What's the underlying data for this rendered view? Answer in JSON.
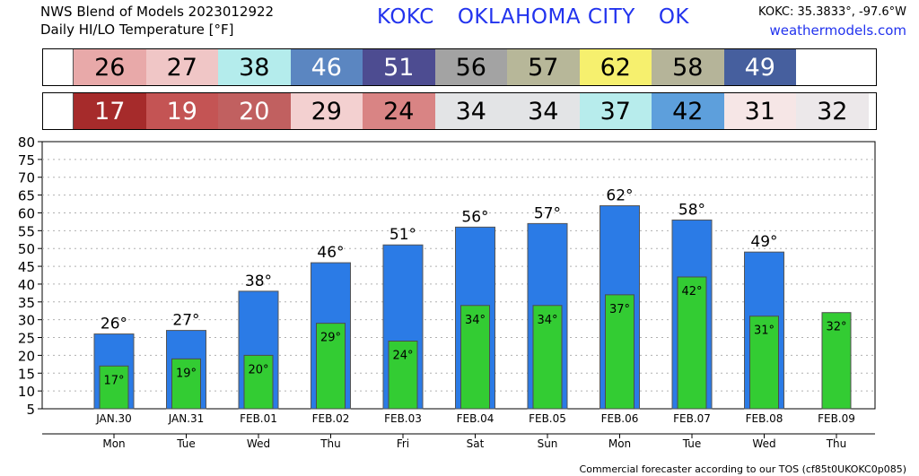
{
  "header": {
    "line1": "NWS Blend of Models 2023012922",
    "line2": "Daily HI/LO Temperature [°F]",
    "station_id": "KOKC",
    "station_name": "OKLAHOMA CITY",
    "state": "OK",
    "coords": "KOKC: 35.3833°, -97.6°W",
    "site": "weathermodels.com"
  },
  "footer": "Commercial forecaster according to our TOS (cf85t0UKOKC0p085)",
  "strips": {
    "hi": [
      "26",
      "27",
      "38",
      "46",
      "51",
      "56",
      "57",
      "62",
      "58",
      "49",
      ""
    ],
    "hi_colors": [
      "#e8a9a9",
      "#f0c6c6",
      "#b4ecec",
      "#5b86c1",
      "#4d4c91",
      "#a3a3a3",
      "#b7b799",
      "#f6f06e",
      "#b5b499",
      "#465f9e",
      "#ffffff"
    ],
    "lo": [
      "17",
      "19",
      "20",
      "29",
      "24",
      "34",
      "34",
      "37",
      "42",
      "31",
      "32"
    ],
    "lo_colors": [
      "#a62b2b",
      "#c45454",
      "#c16060",
      "#f3d0d0",
      "#d98484",
      "#e3e4e6",
      "#e3e4e6",
      "#b7ecec",
      "#5d9fdc",
      "#f6e6e6",
      "#ece8ea"
    ]
  },
  "chart_data": {
    "type": "bar",
    "categories": [
      "JAN.30",
      "JAN.31",
      "FEB.01",
      "FEB.02",
      "FEB.03",
      "FEB.04",
      "FEB.05",
      "FEB.06",
      "FEB.07",
      "FEB.08",
      "FEB.09"
    ],
    "weekdays": [
      "Mon",
      "Tue",
      "Wed",
      "Thu",
      "Fri",
      "Sat",
      "Sun",
      "Mon",
      "Tue",
      "Wed",
      "Thu"
    ],
    "series": [
      {
        "values": [
          26,
          27,
          38,
          46,
          51,
          56,
          57,
          62,
          58,
          49,
          null
        ],
        "color": "#2b7be6"
      },
      {
        "values": [
          17,
          19,
          20,
          29,
          24,
          34,
          34,
          37,
          42,
          31,
          32
        ],
        "color": "#33cc33"
      }
    ],
    "ylim": [
      5,
      80
    ],
    "yticks": [
      5,
      10,
      15,
      20,
      25,
      30,
      35,
      40,
      45,
      50,
      55,
      60,
      65,
      70,
      75,
      80
    ],
    "grid": true,
    "value_suffix": "°"
  }
}
